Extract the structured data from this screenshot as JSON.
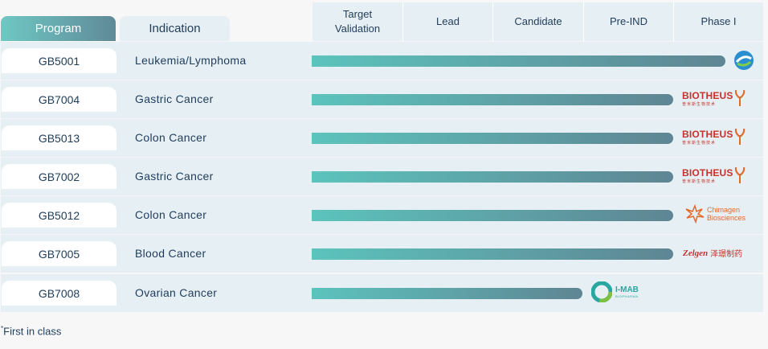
{
  "header": {
    "tab_program": "Program",
    "tab_indication": "Indication",
    "stages": [
      "Target\nValidation",
      "Lead",
      "Candidate",
      "Pre-IND",
      "Phase I"
    ]
  },
  "rows": [
    {
      "program": "GB5001",
      "indication": "Leukemia/Lymphoma",
      "progress_stage": "Phase I",
      "partner": "genor-logo"
    },
    {
      "program": "GB7004",
      "indication": "Gastric Cancer",
      "progress_stage": "Pre-IND",
      "partner": "BIOTHEUS"
    },
    {
      "program": "GB5013",
      "indication": "Colon Cancer",
      "progress_stage": "Pre-IND",
      "partner": "BIOTHEUS"
    },
    {
      "program": "GB7002",
      "indication": "Gastric Cancer",
      "progress_stage": "Pre-IND",
      "partner": "BIOTHEUS"
    },
    {
      "program": "GB5012",
      "indication": "Colon Cancer",
      "progress_stage": "Pre-IND",
      "partner": "Chimagen Biosciences"
    },
    {
      "program": "GB7005",
      "indication": "Blood Cancer",
      "progress_stage": "Pre-IND",
      "partner": "Zelgen"
    },
    {
      "program": "GB7008",
      "indication": "Ovarian Cancer",
      "progress_stage": "Candidate",
      "partner": "I-MAB"
    }
  ],
  "logos": {
    "biotheus": "BIOTHEUS",
    "biotheus_sub": "普米斯生物技术",
    "chimagen_line1": "Chimagen",
    "chimagen_line2": "Biosciences",
    "zelgen": "Zelgen",
    "zelgen_cn": "泽璟制药",
    "imab": "I-MAB",
    "imab_sub": "BIOPHARMA"
  },
  "footnote": "First in class",
  "colors": {
    "teal": "#5cc3bd",
    "slate": "#5f8593",
    "row_bg": "#e6eff4",
    "text": "#1f3c5a",
    "biotheus_red": "#c8312d",
    "chimagen_orange": "#e3692a"
  }
}
